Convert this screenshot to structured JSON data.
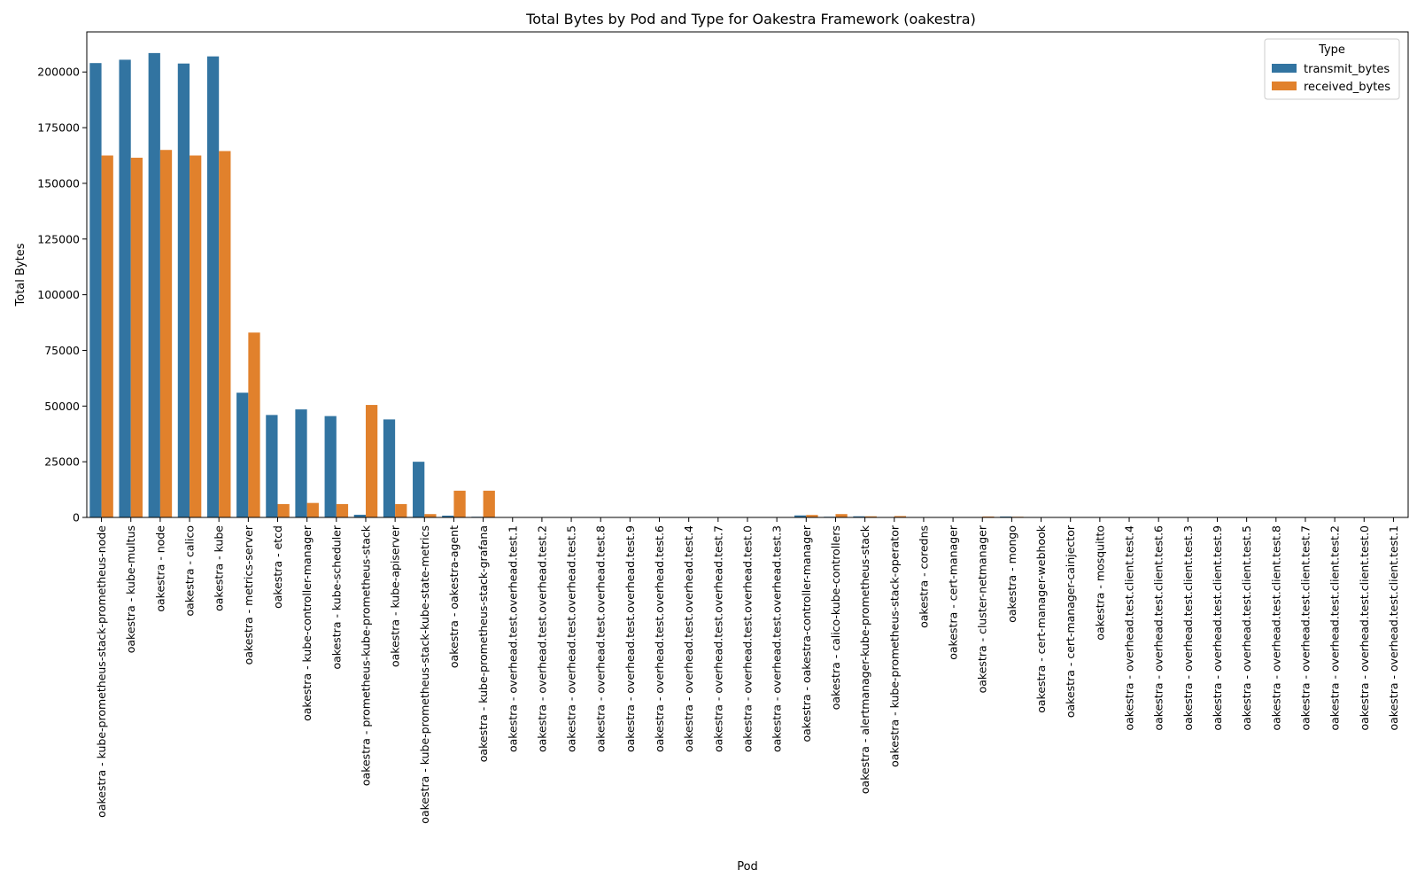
{
  "chart_data": {
    "type": "bar",
    "title": "Total Bytes by Pod and Type for Oakestra Framework (oakestra)",
    "xlabel": "Pod",
    "ylabel": "Total Bytes",
    "ylim": [
      0,
      218000
    ],
    "yticks": [
      0,
      25000,
      50000,
      75000,
      100000,
      125000,
      150000,
      175000,
      200000
    ],
    "grid": false,
    "legend": {
      "title": "Type",
      "placement": "top-right"
    },
    "categories": [
      "oakestra - kube-prometheus-stack-prometheus-node",
      "oakestra - kube-multus",
      "oakestra - node",
      "oakestra - calico",
      "oakestra - kube",
      "oakestra - metrics-server",
      "oakestra - etcd",
      "oakestra - kube-controller-manager",
      "oakestra - kube-scheduler",
      "oakestra - prometheus-kube-prometheus-stack",
      "oakestra - kube-apiserver",
      "oakestra - kube-prometheus-stack-kube-state-metrics",
      "oakestra - oakestra-agent",
      "oakestra - kube-prometheus-stack-grafana",
      "oakestra - overhead.test.overhead.test.1",
      "oakestra - overhead.test.overhead.test.2",
      "oakestra - overhead.test.overhead.test.5",
      "oakestra - overhead.test.overhead.test.8",
      "oakestra - overhead.test.overhead.test.9",
      "oakestra - overhead.test.overhead.test.6",
      "oakestra - overhead.test.overhead.test.4",
      "oakestra - overhead.test.overhead.test.7",
      "oakestra - overhead.test.overhead.test.0",
      "oakestra - overhead.test.overhead.test.3",
      "oakestra - oakestra-controller-manager",
      "oakestra - calico-kube-controllers",
      "oakestra - alertmanager-kube-prometheus-stack",
      "oakestra - kube-prometheus-stack-operator",
      "oakestra - coredns",
      "oakestra - cert-manager",
      "oakestra - cluster-netmanager",
      "oakestra - mongo",
      "oakestra - cert-manager-webhook",
      "oakestra - cert-manager-cainjector",
      "oakestra - mosquitto",
      "oakestra - overhead.test.client.test.4",
      "oakestra - overhead.test.client.test.6",
      "oakestra - overhead.test.client.test.3",
      "oakestra - overhead.test.client.test.9",
      "oakestra - overhead.test.client.test.5",
      "oakestra - overhead.test.client.test.8",
      "oakestra - overhead.test.client.test.7",
      "oakestra - overhead.test.client.test.2",
      "oakestra - overhead.test.client.test.0",
      "oakestra - overhead.test.client.test.1"
    ],
    "series": [
      {
        "name": "transmit_bytes",
        "color": "#3274a1",
        "values": [
          204000,
          205500,
          208500,
          203800,
          207000,
          56000,
          46000,
          48500,
          45500,
          1200,
          44000,
          25000,
          800,
          300,
          0,
          0,
          0,
          0,
          0,
          0,
          0,
          0,
          0,
          0,
          900,
          300,
          500,
          200,
          0,
          0,
          200,
          400,
          0,
          0,
          0,
          0,
          0,
          0,
          0,
          0,
          0,
          0,
          0,
          0,
          0
        ]
      },
      {
        "name": "received_bytes",
        "color": "#e1812c",
        "values": [
          162500,
          161500,
          165000,
          162500,
          164500,
          83000,
          6000,
          6500,
          6000,
          50500,
          6000,
          1500,
          12000,
          12000,
          0,
          0,
          0,
          0,
          0,
          0,
          0,
          0,
          0,
          0,
          1100,
          1500,
          500,
          600,
          0,
          0,
          400,
          300,
          0,
          0,
          0,
          0,
          0,
          0,
          0,
          0,
          0,
          0,
          0,
          0,
          0
        ]
      }
    ]
  }
}
